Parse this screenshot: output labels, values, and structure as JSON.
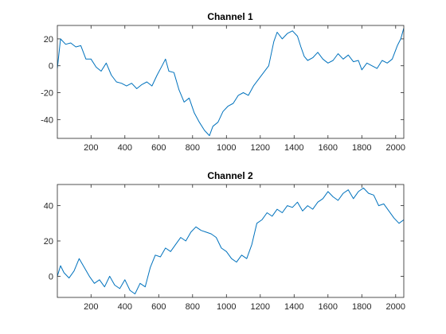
{
  "chart_data": [
    {
      "type": "line",
      "title": "Channel 1",
      "xlabel": "",
      "ylabel": "",
      "xlim": [
        1,
        2048
      ],
      "ylim": [
        -54,
        30
      ],
      "xticks": [
        200,
        400,
        600,
        800,
        1000,
        1200,
        1400,
        1600,
        1800,
        2000
      ],
      "yticks": [
        -40,
        -20,
        0,
        20
      ],
      "grid": false,
      "color": "#0072BD",
      "series": [
        {
          "x": [
            1,
            20,
            50,
            80,
            110,
            140,
            170,
            200,
            230,
            260,
            290,
            320,
            350,
            380,
            410,
            440,
            470,
            500,
            530,
            560,
            590,
            620,
            640,
            660,
            690,
            720,
            750,
            780,
            810,
            840,
            870,
            900,
            920,
            950,
            980,
            1010,
            1040,
            1070,
            1100,
            1130,
            1160,
            1190,
            1220,
            1250,
            1280,
            1300,
            1330,
            1360,
            1390,
            1420,
            1440,
            1460,
            1480,
            1510,
            1540,
            1570,
            1600,
            1630,
            1660,
            1690,
            1720,
            1750,
            1780,
            1800,
            1830,
            1860,
            1890,
            1920,
            1950,
            1980,
            2010,
            2030,
            2048
          ],
          "y": [
            -2,
            20,
            16,
            17,
            14,
            15,
            5,
            5,
            -1,
            -4,
            2,
            -7,
            -12,
            -13,
            -15,
            -13,
            -17,
            -14,
            -12,
            -15,
            -7,
            0,
            5,
            -4,
            -5,
            -18,
            -27,
            -24,
            -35,
            -42,
            -48,
            -52,
            -45,
            -42,
            -34,
            -30,
            -28,
            -22,
            -20,
            -22,
            -15,
            -10,
            -5,
            0,
            18,
            25,
            20,
            24,
            26,
            22,
            14,
            7,
            4,
            6,
            10,
            5,
            2,
            4,
            9,
            5,
            8,
            3,
            4,
            -3,
            2,
            0,
            -2,
            4,
            2,
            5,
            15,
            20,
            28
          ]
        }
      ]
    },
    {
      "type": "line",
      "title": "Channel 2",
      "xlabel": "",
      "ylabel": "",
      "xlim": [
        1,
        2048
      ],
      "ylim": [
        -12,
        52
      ],
      "xticks": [
        200,
        400,
        600,
        800,
        1000,
        1200,
        1400,
        1600,
        1800,
        2000
      ],
      "yticks": [
        0,
        20,
        40
      ],
      "grid": false,
      "color": "#0072BD",
      "series": [
        {
          "x": [
            1,
            20,
            40,
            70,
            100,
            130,
            160,
            190,
            220,
            250,
            280,
            310,
            340,
            370,
            400,
            430,
            460,
            490,
            520,
            550,
            580,
            610,
            640,
            670,
            700,
            730,
            760,
            790,
            820,
            850,
            880,
            910,
            940,
            970,
            1000,
            1030,
            1060,
            1090,
            1120,
            1150,
            1180,
            1210,
            1240,
            1270,
            1300,
            1330,
            1360,
            1390,
            1420,
            1450,
            1480,
            1510,
            1540,
            1570,
            1600,
            1630,
            1660,
            1690,
            1720,
            1750,
            1780,
            1810,
            1840,
            1870,
            1900,
            1930,
            1960,
            1990,
            2020,
            2048
          ],
          "y": [
            0,
            6,
            2,
            -1,
            3,
            10,
            5,
            0,
            -4,
            -2,
            -6,
            0,
            -5,
            -7,
            -2,
            -8,
            -10,
            -4,
            -6,
            5,
            12,
            11,
            16,
            14,
            18,
            22,
            20,
            25,
            28,
            26,
            25,
            24,
            22,
            16,
            14,
            10,
            8,
            12,
            10,
            18,
            30,
            32,
            36,
            34,
            38,
            36,
            40,
            39,
            42,
            37,
            40,
            38,
            42,
            44,
            48,
            45,
            43,
            47,
            49,
            44,
            48,
            50,
            47,
            46,
            40,
            41,
            37,
            33,
            30,
            32
          ]
        }
      ]
    }
  ]
}
